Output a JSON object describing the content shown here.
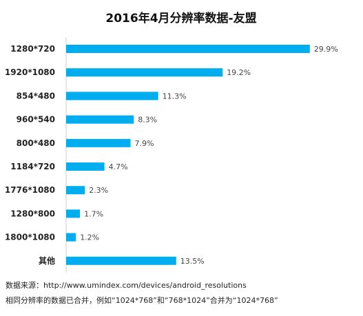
{
  "chart_data": {
    "type": "bar",
    "orientation": "horizontal",
    "title": "2016年4月分辨率数据-友盟",
    "categories": [
      "1280*720",
      "1920*1080",
      "854*480",
      "960*540",
      "800*480",
      "1184*720",
      "1776*1080",
      "1280*800",
      "1800*1080",
      "其他"
    ],
    "values": [
      29.9,
      19.2,
      11.3,
      8.3,
      7.9,
      4.7,
      2.3,
      1.7,
      1.2,
      13.5
    ],
    "value_labels": [
      "29.9%",
      "19.2%",
      "11.3%",
      "8.3%",
      "7.9%",
      "4.7%",
      "2.3%",
      "1.7%",
      "1.2%",
      "13.5%"
    ],
    "unit": "%",
    "xlim": [
      0,
      30
    ],
    "grid": false,
    "legend": "none",
    "bar_color": "#00AEEF"
  },
  "notes": {
    "source": "数据来源：http://www.umindex.com/devices/android_resolutions",
    "merge": "相同分辨率的数据已合并，例如“1024*768”和“768*1024”合并为“1024*768”"
  }
}
